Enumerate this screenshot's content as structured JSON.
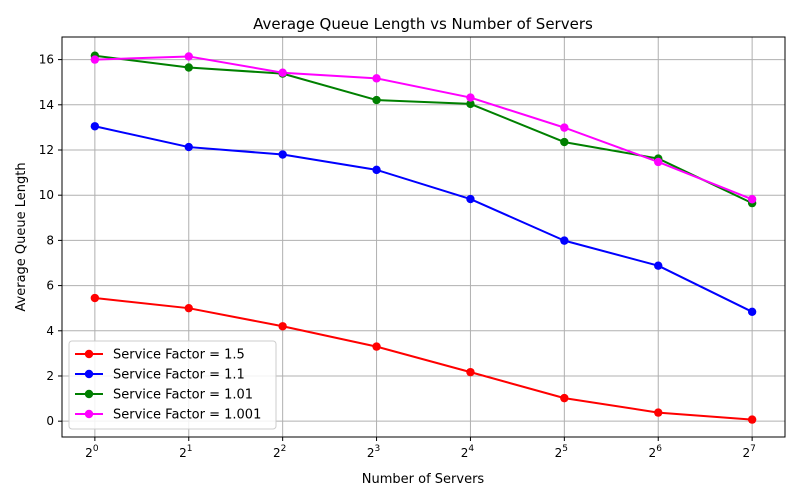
{
  "chart_data": {
    "type": "line",
    "title": "Average Queue Length vs Number of Servers",
    "xlabel": "Number of Servers",
    "ylabel": "Average Queue Length",
    "x": [
      1,
      2,
      4,
      8,
      16,
      32,
      64,
      128
    ],
    "x_scale": "log2",
    "x_tick_base": "2",
    "x_tick_exponents": [
      "0",
      "1",
      "2",
      "3",
      "4",
      "5",
      "6",
      "7"
    ],
    "ylim": [
      -0.7,
      17
    ],
    "y_ticks": [
      "0",
      "2",
      "4",
      "6",
      "8",
      "10",
      "12",
      "14",
      "16"
    ],
    "grid": true,
    "legend_position": "lower-left",
    "series": [
      {
        "name": "Service Factor = 1.5",
        "color": "#ff0000",
        "values": [
          5.45,
          5.0,
          4.2,
          3.3,
          2.17,
          1.02,
          0.38,
          0.07
        ]
      },
      {
        "name": "Service Factor = 1.1",
        "color": "#0000ff",
        "values": [
          13.05,
          12.13,
          11.8,
          11.12,
          9.83,
          7.99,
          6.88,
          4.84
        ]
      },
      {
        "name": "Service Factor = 1.01",
        "color": "#008000",
        "values": [
          16.17,
          15.65,
          15.38,
          14.21,
          14.04,
          12.35,
          11.62,
          9.65
        ]
      },
      {
        "name": "Service Factor = 1.001",
        "color": "#ff00ff",
        "values": [
          16.0,
          16.14,
          15.42,
          15.17,
          14.32,
          12.99,
          11.47,
          9.82
        ]
      }
    ]
  }
}
